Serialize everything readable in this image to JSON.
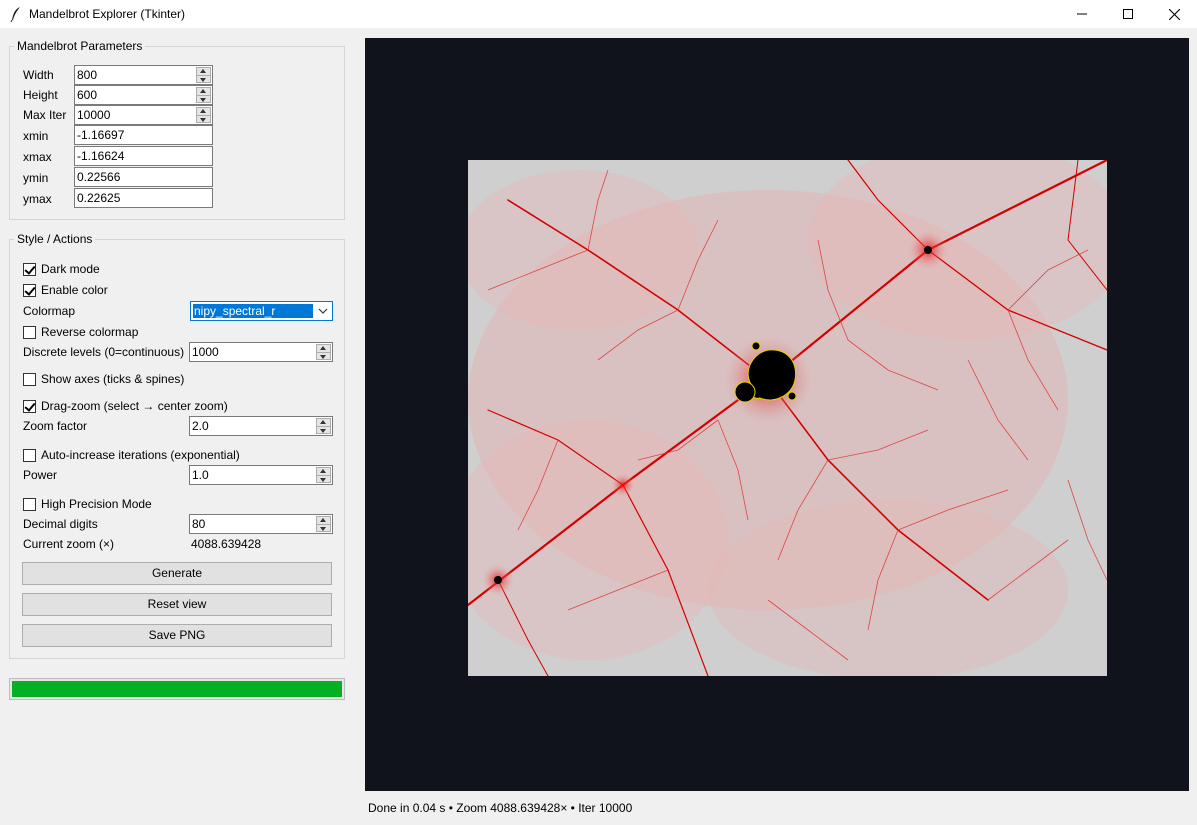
{
  "window": {
    "title": "Mandelbrot Explorer (Tkinter)",
    "app_icon": "feather-icon",
    "controls": [
      "minimize-icon",
      "maximize-icon",
      "close-icon"
    ]
  },
  "params": {
    "title": "Mandelbrot Parameters",
    "fields": [
      {
        "label": "Width",
        "value": "800",
        "spinbox": true
      },
      {
        "label": "Height",
        "value": "600",
        "spinbox": true
      },
      {
        "label": "Max Iter",
        "value": "10000",
        "spinbox": true
      },
      {
        "label": "xmin",
        "value": "-1.16697",
        "spinbox": false
      },
      {
        "label": "xmax",
        "value": "-1.16624",
        "spinbox": false
      },
      {
        "label": "ymin",
        "value": "0.22566",
        "spinbox": false
      },
      {
        "label": "ymax",
        "value": "0.22625",
        "spinbox": false
      }
    ]
  },
  "style": {
    "title": "Style / Actions",
    "dark_mode": {
      "label": "Dark mode",
      "checked": true
    },
    "enable_color": {
      "label": "Enable color",
      "checked": true
    },
    "colormap": {
      "label": "Colormap",
      "value": "nipy_spectral_r"
    },
    "reverse_colormap": {
      "label": "Reverse colormap",
      "checked": false
    },
    "discrete_levels": {
      "label": "Discrete levels (0=continuous)",
      "value": "1000"
    },
    "show_axes": {
      "label": "Show axes (ticks & spines)",
      "checked": false
    },
    "drag_zoom": {
      "label": "Drag-zoom (select → center zoom)",
      "checked": true
    },
    "zoom_factor": {
      "label": "Zoom factor",
      "value": "2.0"
    },
    "auto_iter": {
      "label": "Auto-increase iterations (exponential)",
      "checked": false
    },
    "power": {
      "label": "Power",
      "value": "1.0"
    },
    "high_precision": {
      "label": "High Precision Mode",
      "checked": false
    },
    "decimal_digits": {
      "label": "Decimal digits",
      "value": "80"
    },
    "current_zoom": {
      "label": "Current zoom (×)",
      "value": "4088.639428"
    },
    "buttons": {
      "generate": "Generate",
      "reset": "Reset view",
      "save": "Save PNG"
    }
  },
  "progress": {
    "fraction": 1.0,
    "color": "#06b025"
  },
  "canvas": {
    "background": "#10131b",
    "image_background": "#cfcfcf",
    "filament_color": "#dd0000",
    "set_color": "#000000"
  },
  "status": "Done in 0.04 s • Zoom 4088.639428× • Iter 10000"
}
